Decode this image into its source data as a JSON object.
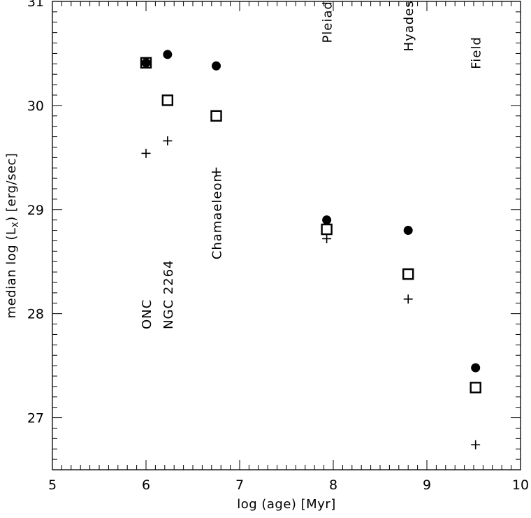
{
  "chart_data": {
    "type": "scatter",
    "title": "",
    "xlabel": "log (age) [Myr]",
    "ylabel_prefix": "median log (L",
    "ylabel_sub": "X",
    "ylabel_suffix": ") [erg/sec]",
    "xlim": [
      5,
      10
    ],
    "ylim": [
      26.5,
      31
    ],
    "x_ticks": [
      {
        "value": 5,
        "label": "5"
      },
      {
        "value": 6,
        "label": "6"
      },
      {
        "value": 7,
        "label": "7"
      },
      {
        "value": 8,
        "label": "8"
      },
      {
        "value": 9,
        "label": "9"
      },
      {
        "value": 10,
        "label": "10"
      }
    ],
    "y_ticks": [
      {
        "value": 27,
        "label": "27"
      },
      {
        "value": 28,
        "label": "28"
      },
      {
        "value": 29,
        "label": "29"
      },
      {
        "value": 30,
        "label": "30"
      },
      {
        "value": 31,
        "label": "31"
      }
    ],
    "grid": false,
    "series": [
      {
        "marker": "filled-circle",
        "x": [
          6.0,
          6.23,
          6.75,
          7.93,
          8.8,
          9.52
        ],
        "y": [
          30.41,
          30.49,
          30.38,
          28.9,
          28.8,
          27.48
        ]
      },
      {
        "marker": "open-square",
        "x": [
          6.0,
          6.23,
          6.75,
          7.93,
          8.8,
          9.52
        ],
        "y": [
          30.41,
          30.05,
          29.9,
          28.81,
          28.38,
          27.29
        ]
      },
      {
        "marker": "plus",
        "x": [
          6.0,
          6.23,
          6.75,
          7.93,
          8.8,
          9.52
        ],
        "y": [
          29.54,
          29.66,
          29.36,
          28.72,
          28.14,
          26.74
        ]
      }
    ],
    "annotations": [
      {
        "text": "ONC",
        "x": 6.0,
        "y": 27.85
      },
      {
        "text": "NGC 2264",
        "x": 6.23,
        "y": 27.85
      },
      {
        "text": "Chamaeleon",
        "x": 6.75,
        "y": 28.52
      },
      {
        "text": "Pleiades",
        "x": 7.93,
        "y": 30.6
      },
      {
        "text": "Hyades",
        "x": 8.8,
        "y": 30.52
      },
      {
        "text": "Field",
        "x": 9.52,
        "y": 30.35
      }
    ],
    "colors": {
      "ink": "#000000",
      "background": "#ffffff"
    }
  }
}
